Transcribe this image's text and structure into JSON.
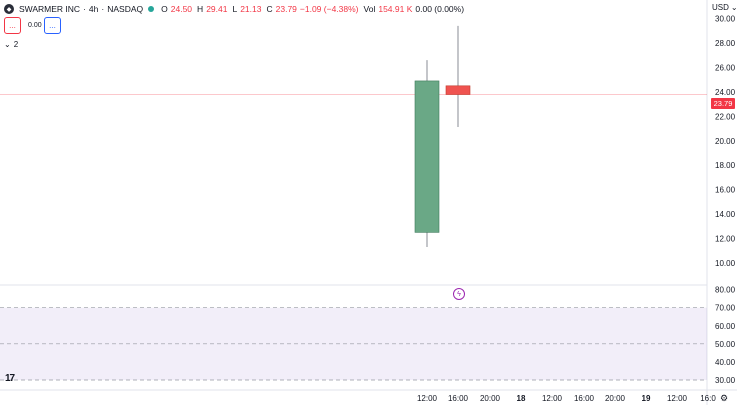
{
  "legend": {
    "symbol": "SWARMER INC",
    "interval": "4h",
    "exchange": "NASDAQ",
    "open_label": "O",
    "open": "24.50",
    "high_label": "H",
    "high": "29.41",
    "low_label": "L",
    "low": "21.13",
    "close_label": "C",
    "close": "23.79",
    "change": "−1.09 (−4.38%)",
    "vol_label": "Vol",
    "volume": "154.91 K",
    "vol_change": "0.00 (0.00%)",
    "separator": "·"
  },
  "indicators": {
    "btn1": "...",
    "btn2": "...",
    "zero_value": "0.00",
    "collapse_count": "2"
  },
  "currency": "USD",
  "last_price": "23.79",
  "colors": {
    "up": "#26a69a",
    "up_body": "#6aa886",
    "down": "#ef5350",
    "last_line": "#f23645",
    "rsi_band": "#7e57c2"
  },
  "icons": {
    "logo": "swarmer-logo-icon",
    "tv": "tradingview-logo-icon",
    "bolt": "lightning-icon",
    "settings": "gear-icon",
    "chevron": "chevron-down-icon"
  },
  "chart_data": {
    "type": "candlestick",
    "interval": "4h",
    "price_axis": {
      "ticks": [
        "30.00",
        "28.00",
        "26.00",
        "24.00",
        "22.00",
        "20.00",
        "18.00",
        "16.00",
        "14.00",
        "12.00",
        "10.00"
      ],
      "range": [
        8.6,
        31.2
      ]
    },
    "candles": [
      {
        "time": "12:00",
        "open": 12.5,
        "high": 26.6,
        "low": 11.3,
        "close": 24.9
      },
      {
        "time": "16:00",
        "open": 24.5,
        "high": 29.41,
        "low": 21.13,
        "close": 23.79
      }
    ],
    "time_axis": [
      "12:00",
      "16:00",
      "20:00",
      "18",
      "12:00",
      "16:00",
      "20:00",
      "19",
      "12:00",
      "16:0"
    ],
    "rsi_pane": {
      "ticks": [
        "80.00",
        "70.00",
        "60.00",
        "50.00",
        "40.00",
        "30.00"
      ],
      "range": [
        25,
        82
      ],
      "band": [
        30,
        70
      ],
      "middle": 50
    }
  }
}
